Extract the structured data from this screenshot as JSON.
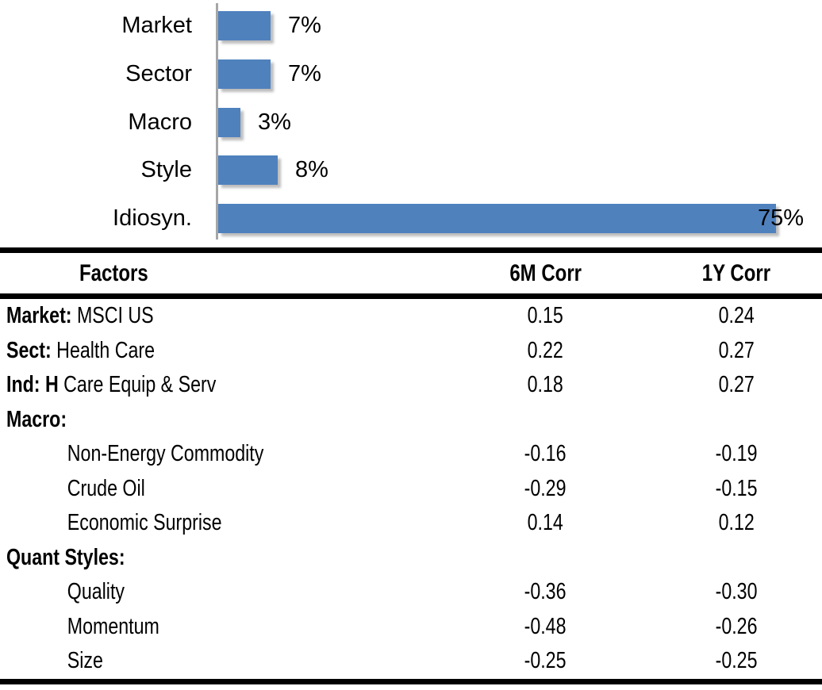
{
  "chart_data": [
    {
      "type": "bar",
      "orientation": "horizontal",
      "title": "",
      "categories": [
        "Market",
        "Sector",
        "Macro",
        "Style",
        "Idiosyn."
      ],
      "values": [
        7,
        7,
        3,
        8,
        75
      ],
      "data_labels": [
        "7%",
        "7%",
        "3%",
        "8%",
        "75%"
      ],
      "xlim": [
        0,
        75
      ],
      "xlabel": "",
      "ylabel": "",
      "grid": false,
      "legend": false,
      "bar_color": "#4F81BD",
      "axis_color": "#A6A6A6"
    },
    {
      "type": "table",
      "columns": [
        "Factors",
        "6M Corr",
        "1Y Corr"
      ],
      "rows": [
        {
          "prefix": "Market:",
          "label": " MSCI US",
          "indent": false,
          "corr_6m": "0.15",
          "corr_1y": "0.24"
        },
        {
          "prefix": "Sect:",
          "label": " Health Care",
          "indent": false,
          "corr_6m": "0.22",
          "corr_1y": "0.27"
        },
        {
          "prefix": "Ind: H",
          "label": " Care Equip & Serv",
          "indent": false,
          "corr_6m": "0.18",
          "corr_1y": "0.27"
        },
        {
          "prefix": "Macro:",
          "label": "",
          "indent": false,
          "corr_6m": "",
          "corr_1y": ""
        },
        {
          "prefix": "",
          "label": "Non-Energy Commodity",
          "indent": true,
          "corr_6m": "-0.16",
          "corr_1y": "-0.19"
        },
        {
          "prefix": "",
          "label": "Crude Oil",
          "indent": true,
          "corr_6m": "-0.29",
          "corr_1y": "-0.15"
        },
        {
          "prefix": "",
          "label": "Economic Surprise",
          "indent": true,
          "corr_6m": "0.14",
          "corr_1y": "0.12"
        },
        {
          "prefix": "Quant Styles:",
          "label": "",
          "indent": false,
          "corr_6m": "",
          "corr_1y": ""
        },
        {
          "prefix": "",
          "label": "Quality",
          "indent": true,
          "corr_6m": "-0.36",
          "corr_1y": "-0.30"
        },
        {
          "prefix": "",
          "label": "Momentum",
          "indent": true,
          "corr_6m": "-0.48",
          "corr_1y": "-0.26"
        },
        {
          "prefix": "",
          "label": "Size",
          "indent": true,
          "corr_6m": "-0.25",
          "corr_1y": "-0.25"
        }
      ]
    }
  ],
  "colors": {
    "bar": "#4F81BD",
    "axis": "#A6A6A6",
    "rule": "#000000",
    "text": "#000000"
  }
}
